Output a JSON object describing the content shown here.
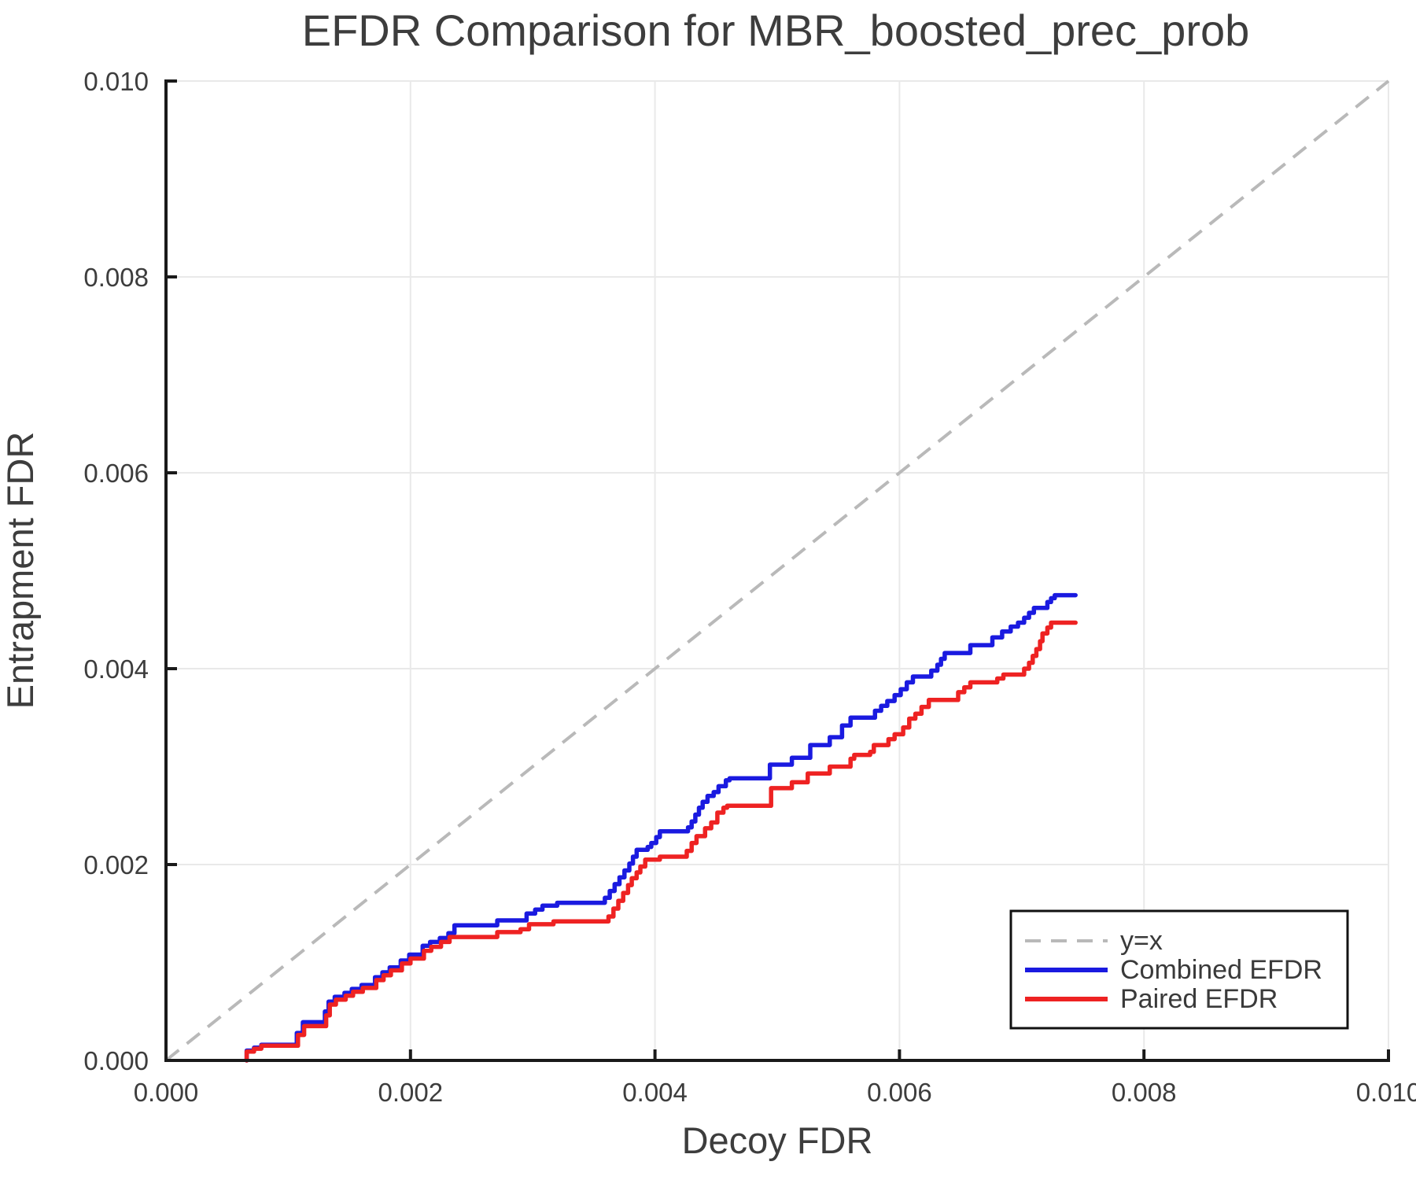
{
  "chart_data": {
    "type": "line",
    "title": "EFDR Comparison for MBR_boosted_prec_prob",
    "xlabel": "Decoy FDR",
    "ylabel": "Entrapment FDR",
    "xlim": [
      0.0,
      0.01
    ],
    "ylim": [
      0.0,
      0.01
    ],
    "xticks": [
      0.0,
      0.002,
      0.004,
      0.006,
      0.008,
      0.01
    ],
    "yticks": [
      0.0,
      0.002,
      0.004,
      0.006,
      0.008,
      0.01
    ],
    "xtick_labels": [
      "0.000",
      "0.002",
      "0.004",
      "0.006",
      "0.008",
      "0.010"
    ],
    "ytick_labels": [
      "0.000",
      "0.002",
      "0.004",
      "0.006",
      "0.008",
      "0.010"
    ],
    "grid": true,
    "grid_color": "#e9e9e9",
    "spine_color": "#1a1a1a",
    "text_color": "#3d3d3d",
    "legend_position": "lower right",
    "series": [
      {
        "name": "y=x",
        "type": "identity",
        "style": "dashed",
        "color": "#b9b9b9",
        "points": [
          [
            0.0,
            0.0
          ],
          [
            0.01,
            0.01
          ]
        ]
      },
      {
        "name": "Combined EFDR",
        "type": "step",
        "style": "solid",
        "color": "#1a1ae0",
        "points": [
          [
            0.00066,
            0
          ],
          [
            0.00066,
            0.0001
          ],
          [
            0.00072,
            0.00013
          ],
          [
            0.00078,
            0.00016
          ],
          [
            0.00107,
            0.00028
          ],
          [
            0.00112,
            0.00039
          ],
          [
            0.0013,
            0.0005
          ],
          [
            0.00133,
            0.0006
          ],
          [
            0.00138,
            0.00065
          ],
          [
            0.00146,
            0.00069
          ],
          [
            0.00152,
            0.00073
          ],
          [
            0.0016,
            0.00077
          ],
          [
            0.00171,
            0.00085
          ],
          [
            0.00177,
            0.0009
          ],
          [
            0.00183,
            0.00095
          ],
          [
            0.00192,
            0.00102
          ],
          [
            0.00199,
            0.00108
          ],
          [
            0.0021,
            0.00117
          ],
          [
            0.00216,
            0.00121
          ],
          [
            0.00224,
            0.00125
          ],
          [
            0.00231,
            0.0013
          ],
          [
            0.00236,
            0.00138
          ],
          [
            0.00271,
            0.00143
          ],
          [
            0.00295,
            0.0015
          ],
          [
            0.00302,
            0.00154
          ],
          [
            0.00308,
            0.00158
          ],
          [
            0.0032,
            0.00161
          ],
          [
            0.00359,
            0.00166
          ],
          [
            0.00363,
            0.00173
          ],
          [
            0.00367,
            0.0018
          ],
          [
            0.00371,
            0.00187
          ],
          [
            0.00375,
            0.00194
          ],
          [
            0.00379,
            0.00201
          ],
          [
            0.00382,
            0.00208
          ],
          [
            0.00385,
            0.00215
          ],
          [
            0.00394,
            0.00218
          ],
          [
            0.00397,
            0.00222
          ],
          [
            0.00401,
            0.00228
          ],
          [
            0.00404,
            0.00234
          ],
          [
            0.00427,
            0.00238
          ],
          [
            0.0043,
            0.00244
          ],
          [
            0.00433,
            0.00251
          ],
          [
            0.00436,
            0.00258
          ],
          [
            0.00439,
            0.00264
          ],
          [
            0.00443,
            0.0027
          ],
          [
            0.00448,
            0.00274
          ],
          [
            0.00452,
            0.0028
          ],
          [
            0.00458,
            0.00286
          ],
          [
            0.00461,
            0.00288
          ],
          [
            0.00494,
            0.00302
          ],
          [
            0.00512,
            0.00309
          ],
          [
            0.00527,
            0.00322
          ],
          [
            0.00543,
            0.0033
          ],
          [
            0.00553,
            0.00342
          ],
          [
            0.0056,
            0.0035
          ],
          [
            0.0058,
            0.00357
          ],
          [
            0.00585,
            0.00362
          ],
          [
            0.0059,
            0.00367
          ],
          [
            0.00596,
            0.00373
          ],
          [
            0.00601,
            0.00379
          ],
          [
            0.00606,
            0.00386
          ],
          [
            0.00611,
            0.00392
          ],
          [
            0.00626,
            0.00398
          ],
          [
            0.00631,
            0.00404
          ],
          [
            0.00634,
            0.0041
          ],
          [
            0.00637,
            0.00416
          ],
          [
            0.00658,
            0.00424
          ],
          [
            0.00676,
            0.00432
          ],
          [
            0.00684,
            0.00438
          ],
          [
            0.00691,
            0.00443
          ],
          [
            0.00697,
            0.00447
          ],
          [
            0.00702,
            0.00452
          ],
          [
            0.00706,
            0.00457
          ],
          [
            0.0071,
            0.00462
          ],
          [
            0.00721,
            0.00468
          ],
          [
            0.00724,
            0.00472
          ],
          [
            0.00727,
            0.00475
          ],
          [
            0.00744,
            0.00475
          ]
        ]
      },
      {
        "name": "Paired EFDR",
        "type": "step",
        "style": "solid",
        "color": "#ee2222",
        "points": [
          [
            0.00066,
            0
          ],
          [
            0.00066,
            9e-05
          ],
          [
            0.00072,
            0.00012
          ],
          [
            0.00078,
            0.00015
          ],
          [
            0.00108,
            0.00026
          ],
          [
            0.00113,
            0.00035
          ],
          [
            0.00131,
            0.00046
          ],
          [
            0.00134,
            0.00057
          ],
          [
            0.00139,
            0.00062
          ],
          [
            0.00147,
            0.00066
          ],
          [
            0.00153,
            0.0007
          ],
          [
            0.00161,
            0.00074
          ],
          [
            0.00172,
            0.00082
          ],
          [
            0.00178,
            0.00087
          ],
          [
            0.00184,
            0.00092
          ],
          [
            0.00193,
            0.00099
          ],
          [
            0.002,
            0.00104
          ],
          [
            0.00211,
            0.00112
          ],
          [
            0.00217,
            0.00116
          ],
          [
            0.00225,
            0.00121
          ],
          [
            0.00232,
            0.00126
          ],
          [
            0.00271,
            0.00131
          ],
          [
            0.0029,
            0.00134
          ],
          [
            0.00297,
            0.00139
          ],
          [
            0.00317,
            0.00142
          ],
          [
            0.00362,
            0.00147
          ],
          [
            0.00366,
            0.00155
          ],
          [
            0.0037,
            0.00163
          ],
          [
            0.00374,
            0.00171
          ],
          [
            0.00378,
            0.00179
          ],
          [
            0.00381,
            0.00186
          ],
          [
            0.00385,
            0.00192
          ],
          [
            0.00388,
            0.00198
          ],
          [
            0.00392,
            0.00205
          ],
          [
            0.00404,
            0.00208
          ],
          [
            0.00426,
            0.00214
          ],
          [
            0.0043,
            0.00222
          ],
          [
            0.00434,
            0.00229
          ],
          [
            0.00441,
            0.00237
          ],
          [
            0.00446,
            0.00243
          ],
          [
            0.00451,
            0.00253
          ],
          [
            0.00456,
            0.00258
          ],
          [
            0.00459,
            0.0026
          ],
          [
            0.00495,
            0.00278
          ],
          [
            0.00512,
            0.00284
          ],
          [
            0.00525,
            0.00293
          ],
          [
            0.00543,
            0.003
          ],
          [
            0.0056,
            0.00308
          ],
          [
            0.00563,
            0.00312
          ],
          [
            0.00576,
            0.00315
          ],
          [
            0.00579,
            0.00322
          ],
          [
            0.00591,
            0.00328
          ],
          [
            0.00596,
            0.00333
          ],
          [
            0.00603,
            0.0034
          ],
          [
            0.00608,
            0.00349
          ],
          [
            0.00613,
            0.00354
          ],
          [
            0.00618,
            0.00361
          ],
          [
            0.00624,
            0.00368
          ],
          [
            0.00648,
            0.00376
          ],
          [
            0.00653,
            0.00381
          ],
          [
            0.00658,
            0.00386
          ],
          [
            0.0068,
            0.0039
          ],
          [
            0.00685,
            0.00394
          ],
          [
            0.00702,
            0.004
          ],
          [
            0.00706,
            0.00406
          ],
          [
            0.00709,
            0.00413
          ],
          [
            0.00712,
            0.0042
          ],
          [
            0.00715,
            0.00428
          ],
          [
            0.00717,
            0.00436
          ],
          [
            0.00721,
            0.00442
          ],
          [
            0.00724,
            0.00447
          ],
          [
            0.00744,
            0.00447
          ]
        ]
      }
    ]
  }
}
